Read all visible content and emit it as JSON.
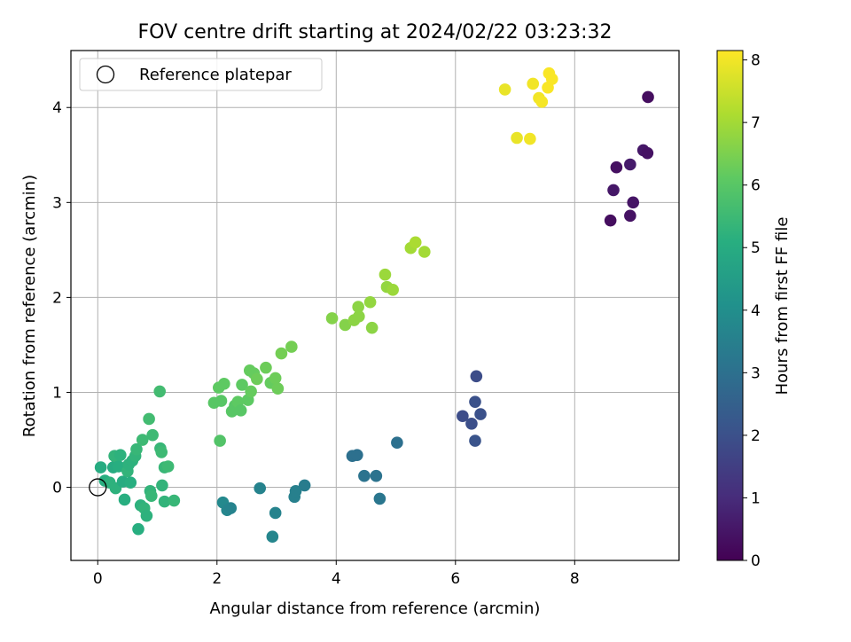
{
  "chart_data": {
    "type": "scatter",
    "title": "FOV centre drift starting at 2024/02/22 03:23:32",
    "xlabel": "Angular distance from reference (arcmin)",
    "ylabel": "Rotation from reference (arcmin)",
    "xlim": [
      -0.45,
      9.75
    ],
    "ylim": [
      -0.77,
      4.6
    ],
    "xticks": [
      0,
      2,
      4,
      6,
      8
    ],
    "yticks": [
      0,
      1,
      2,
      3,
      4
    ],
    "grid": true,
    "legend": {
      "placement": "top-left",
      "entries": [
        "Reference platepar"
      ]
    },
    "reference_point": {
      "x": 0,
      "y": 0,
      "label": "Reference platepar"
    },
    "colorbar": {
      "label": "Hours from first FF file",
      "colormap": "viridis",
      "range": [
        0,
        8.15
      ],
      "ticks": [
        0,
        1,
        2,
        3,
        4,
        5,
        6,
        7,
        8
      ]
    },
    "points": [
      {
        "x": 8.6,
        "y": 2.81,
        "c": 0.3
      },
      {
        "x": 8.65,
        "y": 3.13,
        "c": 0.5
      },
      {
        "x": 8.7,
        "y": 3.37,
        "c": 0.35
      },
      {
        "x": 8.93,
        "y": 2.86,
        "c": 0.4
      },
      {
        "x": 8.93,
        "y": 3.4,
        "c": 0.6
      },
      {
        "x": 8.98,
        "y": 3.0,
        "c": 0.45
      },
      {
        "x": 9.15,
        "y": 3.55,
        "c": 0.5
      },
      {
        "x": 9.22,
        "y": 3.52,
        "c": 0.4
      },
      {
        "x": 9.23,
        "y": 4.11,
        "c": 0.3
      },
      {
        "x": 6.12,
        "y": 0.75,
        "c": 1.9
      },
      {
        "x": 6.27,
        "y": 0.67,
        "c": 1.95
      },
      {
        "x": 6.33,
        "y": 0.9,
        "c": 2.0
      },
      {
        "x": 6.35,
        "y": 1.17,
        "c": 1.9
      },
      {
        "x": 6.42,
        "y": 0.77,
        "c": 2.0
      },
      {
        "x": 6.33,
        "y": 0.49,
        "c": 2.1
      },
      {
        "x": 4.27,
        "y": 0.33,
        "c": 3.0
      },
      {
        "x": 4.35,
        "y": 0.34,
        "c": 3.0
      },
      {
        "x": 4.47,
        "y": 0.12,
        "c": 3.1
      },
      {
        "x": 4.67,
        "y": 0.12,
        "c": 3.1
      },
      {
        "x": 4.73,
        "y": -0.12,
        "c": 3.2
      },
      {
        "x": 5.02,
        "y": 0.47,
        "c": 3.0
      },
      {
        "x": 2.72,
        "y": -0.01,
        "c": 3.6
      },
      {
        "x": 2.1,
        "y": -0.16,
        "c": 3.8
      },
      {
        "x": 2.17,
        "y": -0.24,
        "c": 3.7
      },
      {
        "x": 2.23,
        "y": -0.22,
        "c": 3.6
      },
      {
        "x": 2.93,
        "y": -0.52,
        "c": 3.7
      },
      {
        "x": 2.98,
        "y": -0.27,
        "c": 3.6
      },
      {
        "x": 3.3,
        "y": -0.1,
        "c": 3.5
      },
      {
        "x": 3.32,
        "y": -0.04,
        "c": 3.5
      },
      {
        "x": 3.47,
        "y": 0.02,
        "c": 3.4
      },
      {
        "x": 0.05,
        "y": 0.21,
        "c": 5.0
      },
      {
        "x": 0.12,
        "y": 0.07,
        "c": 5.1
      },
      {
        "x": 0.2,
        "y": 0.05,
        "c": 5.2
      },
      {
        "x": 0.26,
        "y": 0.21,
        "c": 5.0
      },
      {
        "x": 0.28,
        "y": 0.33,
        "c": 5.3
      },
      {
        "x": 0.3,
        "y": -0.01,
        "c": 5.2
      },
      {
        "x": 0.35,
        "y": 0.22,
        "c": 5.1
      },
      {
        "x": 0.38,
        "y": 0.34,
        "c": 5.2
      },
      {
        "x": 0.42,
        "y": 0.06,
        "c": 5.0
      },
      {
        "x": 0.45,
        "y": -0.13,
        "c": 5.1
      },
      {
        "x": 0.5,
        "y": 0.17,
        "c": 5.3
      },
      {
        "x": 0.52,
        "y": 0.24,
        "c": 5.2
      },
      {
        "x": 0.55,
        "y": 0.05,
        "c": 5.1
      },
      {
        "x": 0.58,
        "y": 0.28,
        "c": 5.2
      },
      {
        "x": 0.63,
        "y": 0.33,
        "c": 5.3
      },
      {
        "x": 0.65,
        "y": 0.4,
        "c": 5.4
      },
      {
        "x": 0.68,
        "y": -0.44,
        "c": 5.1
      },
      {
        "x": 0.72,
        "y": -0.19,
        "c": 5.2
      },
      {
        "x": 0.75,
        "y": 0.5,
        "c": 5.5
      },
      {
        "x": 0.78,
        "y": -0.22,
        "c": 5.3
      },
      {
        "x": 0.82,
        "y": -0.3,
        "c": 5.2
      },
      {
        "x": 0.86,
        "y": 0.72,
        "c": 5.6
      },
      {
        "x": 0.88,
        "y": -0.04,
        "c": 5.3
      },
      {
        "x": 0.9,
        "y": -0.09,
        "c": 5.4
      },
      {
        "x": 0.92,
        "y": 0.55,
        "c": 5.5
      },
      {
        "x": 1.04,
        "y": 1.01,
        "c": 5.6
      },
      {
        "x": 1.05,
        "y": 0.41,
        "c": 5.4
      },
      {
        "x": 1.07,
        "y": 0.37,
        "c": 5.5
      },
      {
        "x": 1.08,
        "y": 0.02,
        "c": 5.3
      },
      {
        "x": 1.12,
        "y": 0.21,
        "c": 5.4
      },
      {
        "x": 1.12,
        "y": -0.15,
        "c": 5.3
      },
      {
        "x": 1.18,
        "y": 0.22,
        "c": 5.5
      },
      {
        "x": 1.28,
        "y": -0.14,
        "c": 5.4
      },
      {
        "x": 1.95,
        "y": 0.89,
        "c": 6.0
      },
      {
        "x": 2.03,
        "y": 1.05,
        "c": 6.1
      },
      {
        "x": 2.05,
        "y": 0.49,
        "c": 5.9
      },
      {
        "x": 2.07,
        "y": 0.91,
        "c": 6.0
      },
      {
        "x": 2.12,
        "y": 1.09,
        "c": 6.1
      },
      {
        "x": 2.25,
        "y": 0.8,
        "c": 6.0
      },
      {
        "x": 2.3,
        "y": 0.86,
        "c": 6.0
      },
      {
        "x": 2.35,
        "y": 0.9,
        "c": 6.1
      },
      {
        "x": 2.4,
        "y": 0.81,
        "c": 6.0
      },
      {
        "x": 2.42,
        "y": 1.08,
        "c": 6.1
      },
      {
        "x": 2.52,
        "y": 0.92,
        "c": 6.1
      },
      {
        "x": 2.55,
        "y": 1.23,
        "c": 6.2
      },
      {
        "x": 2.57,
        "y": 1.01,
        "c": 6.2
      },
      {
        "x": 2.62,
        "y": 1.2,
        "c": 6.2
      },
      {
        "x": 2.67,
        "y": 1.14,
        "c": 6.3
      },
      {
        "x": 2.82,
        "y": 1.26,
        "c": 6.3
      },
      {
        "x": 2.9,
        "y": 1.1,
        "c": 6.2
      },
      {
        "x": 2.98,
        "y": 1.15,
        "c": 6.3
      },
      {
        "x": 3.02,
        "y": 1.04,
        "c": 6.3
      },
      {
        "x": 3.08,
        "y": 1.41,
        "c": 6.4
      },
      {
        "x": 3.25,
        "y": 1.48,
        "c": 6.4
      },
      {
        "x": 3.93,
        "y": 1.78,
        "c": 6.6
      },
      {
        "x": 4.15,
        "y": 1.71,
        "c": 6.6
      },
      {
        "x": 4.3,
        "y": 1.76,
        "c": 6.7
      },
      {
        "x": 4.37,
        "y": 1.9,
        "c": 6.7
      },
      {
        "x": 4.38,
        "y": 1.8,
        "c": 6.7
      },
      {
        "x": 4.57,
        "y": 1.95,
        "c": 6.8
      },
      {
        "x": 4.6,
        "y": 1.68,
        "c": 6.7
      },
      {
        "x": 4.82,
        "y": 2.24,
        "c": 6.9
      },
      {
        "x": 4.85,
        "y": 2.11,
        "c": 6.8
      },
      {
        "x": 4.95,
        "y": 2.08,
        "c": 6.9
      },
      {
        "x": 5.25,
        "y": 2.52,
        "c": 7.0
      },
      {
        "x": 5.33,
        "y": 2.58,
        "c": 7.1
      },
      {
        "x": 5.48,
        "y": 2.48,
        "c": 7.0
      },
      {
        "x": 6.83,
        "y": 4.19,
        "c": 7.9
      },
      {
        "x": 7.03,
        "y": 3.68,
        "c": 7.9
      },
      {
        "x": 7.25,
        "y": 3.67,
        "c": 8.0
      },
      {
        "x": 7.3,
        "y": 4.25,
        "c": 8.0
      },
      {
        "x": 7.4,
        "y": 4.1,
        "c": 8.0
      },
      {
        "x": 7.45,
        "y": 4.06,
        "c": 8.05
      },
      {
        "x": 7.55,
        "y": 4.21,
        "c": 8.1
      },
      {
        "x": 7.57,
        "y": 4.36,
        "c": 8.1
      },
      {
        "x": 7.62,
        "y": 4.3,
        "c": 8.1
      }
    ]
  }
}
